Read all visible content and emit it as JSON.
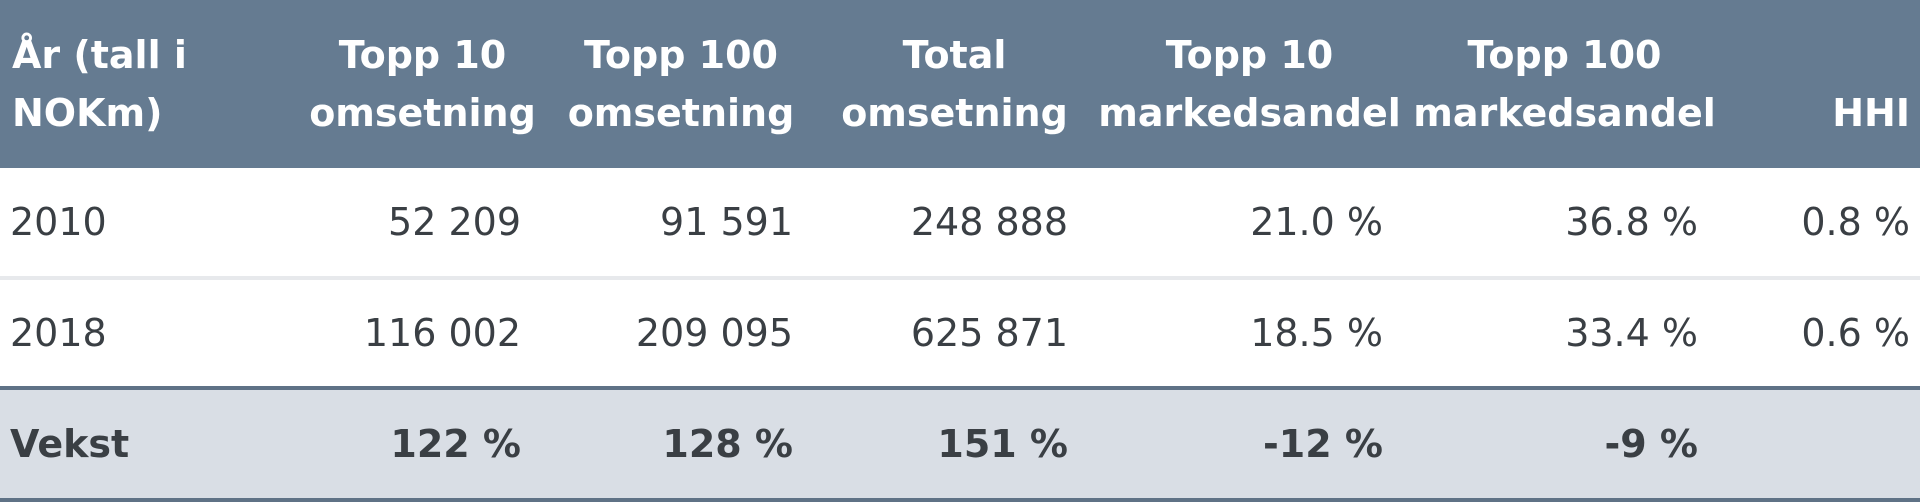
{
  "table": {
    "headers": [
      [
        "År (tall i",
        "NOKm)"
      ],
      [
        "Topp 10",
        "omsetning"
      ],
      [
        "Topp 100",
        "omsetning"
      ],
      [
        "Total",
        "omsetning"
      ],
      [
        "Topp 10",
        "markedsandel"
      ],
      [
        "Topp 100",
        "markedsandel"
      ],
      [
        "HHI",
        ""
      ]
    ],
    "rows": [
      [
        "2010",
        "52 209",
        "91 591",
        "248 888",
        "21.0 %",
        "36.8 %",
        "0.8 %"
      ],
      [
        "2018",
        "116 002",
        "209 095",
        "625 871",
        "18.5 %",
        "33.4 %",
        "0.6 %"
      ]
    ],
    "total_row": [
      "Vekst",
      "122 %",
      "128 %",
      "151 %",
      "-12 %",
      "-9 %",
      ""
    ]
  },
  "colors": {
    "header_bg": "#657b91",
    "header_text": "#ffffff",
    "total_bg": "#d9dee5",
    "border": "#5f7286"
  }
}
